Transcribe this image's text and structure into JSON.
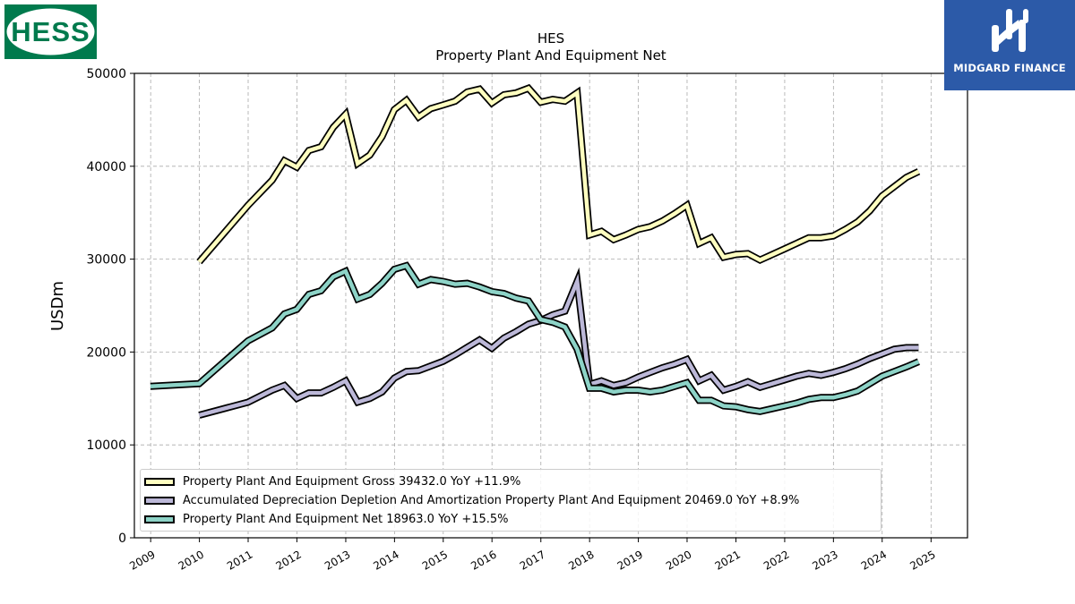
{
  "logos": {
    "left": {
      "text": "HESS",
      "bg_color": "#007a4d"
    },
    "right": {
      "text": "MIDGARD FINANCE",
      "bg_color": "#2c5aa8"
    }
  },
  "chart_data": {
    "type": "line",
    "title": "HES",
    "subtitle": "Property Plant And Equipment Net",
    "xlabel": "",
    "ylabel": "USDm",
    "xlim": [
      "2008-09-01",
      "2025-10-01"
    ],
    "ylim": [
      0,
      50000
    ],
    "x_ticks": [
      "2009",
      "2010",
      "2011",
      "2012",
      "2013",
      "2014",
      "2015",
      "2016",
      "2017",
      "2018",
      "2019",
      "2020",
      "2021",
      "2022",
      "2023",
      "2024",
      "2025"
    ],
    "y_ticks": [
      "0",
      "10000",
      "20000",
      "30000",
      "40000",
      "50000"
    ],
    "grid": true,
    "legend_position": "lower-left",
    "series": [
      {
        "name": "Property Plant And Equipment Gross",
        "legend_label": "Property Plant And Equipment Gross  39432.0 YoY +11.9%",
        "color": "#ffffc0",
        "points": [
          [
            "2009-12-31",
            29700
          ],
          [
            "2010-12-31",
            35800
          ],
          [
            "2011-06-30",
            38500
          ],
          [
            "2011-09-30",
            40600
          ],
          [
            "2011-12-31",
            39900
          ],
          [
            "2012-03-31",
            41700
          ],
          [
            "2012-06-30",
            42100
          ],
          [
            "2012-09-30",
            44200
          ],
          [
            "2012-12-31",
            45600
          ],
          [
            "2013-03-31",
            40300
          ],
          [
            "2013-06-30",
            41200
          ],
          [
            "2013-09-30",
            43200
          ],
          [
            "2013-12-31",
            46100
          ],
          [
            "2014-03-31",
            47100
          ],
          [
            "2014-06-30",
            45300
          ],
          [
            "2014-09-30",
            46200
          ],
          [
            "2014-12-31",
            46600
          ],
          [
            "2015-03-31",
            47000
          ],
          [
            "2015-06-30",
            48000
          ],
          [
            "2015-09-30",
            48300
          ],
          [
            "2015-12-31",
            46800
          ],
          [
            "2016-03-31",
            47700
          ],
          [
            "2016-06-30",
            47900
          ],
          [
            "2016-09-30",
            48400
          ],
          [
            "2016-12-31",
            46900
          ],
          [
            "2017-03-31",
            47200
          ],
          [
            "2017-06-30",
            47000
          ],
          [
            "2017-09-30",
            47900
          ],
          [
            "2017-12-31",
            32600
          ],
          [
            "2018-03-31",
            33000
          ],
          [
            "2018-06-30",
            32100
          ],
          [
            "2018-09-30",
            32600
          ],
          [
            "2018-12-31",
            33200
          ],
          [
            "2019-03-31",
            33500
          ],
          [
            "2019-06-30",
            34100
          ],
          [
            "2019-09-30",
            34900
          ],
          [
            "2019-12-31",
            35800
          ],
          [
            "2020-03-31",
            31700
          ],
          [
            "2020-06-30",
            32300
          ],
          [
            "2020-09-30",
            30200
          ],
          [
            "2020-12-31",
            30500
          ],
          [
            "2021-03-31",
            30600
          ],
          [
            "2021-06-30",
            29900
          ],
          [
            "2021-09-30",
            30500
          ],
          [
            "2021-12-31",
            31100
          ],
          [
            "2022-03-31",
            31700
          ],
          [
            "2022-06-30",
            32300
          ],
          [
            "2022-09-30",
            32300
          ],
          [
            "2022-12-31",
            32500
          ],
          [
            "2023-03-31",
            33200
          ],
          [
            "2023-06-30",
            34000
          ],
          [
            "2023-09-30",
            35200
          ],
          [
            "2023-12-31",
            36800
          ],
          [
            "2024-03-31",
            37800
          ],
          [
            "2024-06-30",
            38800
          ],
          [
            "2024-09-30",
            39432
          ]
        ]
      },
      {
        "name": "Accumulated Depreciation Depletion And Amortization Property Plant And Equipment",
        "legend_label": "Accumulated Depreciation Depletion And Amortization Property Plant And Equipment  20469.0 YoY +8.9%",
        "color": "#bcb8d8",
        "points": [
          [
            "2009-12-31",
            13200
          ],
          [
            "2010-12-31",
            14600
          ],
          [
            "2011-06-30",
            15900
          ],
          [
            "2011-09-30",
            16400
          ],
          [
            "2011-12-31",
            15000
          ],
          [
            "2012-03-31",
            15600
          ],
          [
            "2012-06-30",
            15600
          ],
          [
            "2012-09-30",
            16200
          ],
          [
            "2012-12-31",
            16900
          ],
          [
            "2013-03-31",
            14600
          ],
          [
            "2013-06-30",
            15000
          ],
          [
            "2013-09-30",
            15700
          ],
          [
            "2013-12-31",
            17200
          ],
          [
            "2014-03-31",
            17900
          ],
          [
            "2014-06-30",
            18000
          ],
          [
            "2014-09-30",
            18500
          ],
          [
            "2014-12-31",
            19000
          ],
          [
            "2015-03-31",
            19700
          ],
          [
            "2015-06-30",
            20500
          ],
          [
            "2015-09-30",
            21300
          ],
          [
            "2015-12-31",
            20400
          ],
          [
            "2016-03-31",
            21500
          ],
          [
            "2016-06-30",
            22200
          ],
          [
            "2016-09-30",
            23000
          ],
          [
            "2016-12-31",
            23400
          ],
          [
            "2017-03-31",
            24000
          ],
          [
            "2017-06-30",
            24400
          ],
          [
            "2017-09-30",
            27600
          ],
          [
            "2017-12-31",
            16500
          ],
          [
            "2018-03-31",
            16900
          ],
          [
            "2018-06-30",
            16400
          ],
          [
            "2018-09-30",
            16700
          ],
          [
            "2018-12-31",
            17300
          ],
          [
            "2019-03-31",
            17800
          ],
          [
            "2019-06-30",
            18300
          ],
          [
            "2019-09-30",
            18700
          ],
          [
            "2019-12-31",
            19200
          ],
          [
            "2020-03-31",
            16900
          ],
          [
            "2020-06-30",
            17500
          ],
          [
            "2020-09-30",
            15900
          ],
          [
            "2020-12-31",
            16300
          ],
          [
            "2021-03-31",
            16800
          ],
          [
            "2021-06-30",
            16200
          ],
          [
            "2021-09-30",
            16600
          ],
          [
            "2021-12-31",
            17000
          ],
          [
            "2022-03-31",
            17400
          ],
          [
            "2022-06-30",
            17700
          ],
          [
            "2022-09-30",
            17500
          ],
          [
            "2022-12-31",
            17800
          ],
          [
            "2023-03-31",
            18200
          ],
          [
            "2023-06-30",
            18700
          ],
          [
            "2023-09-30",
            19300
          ],
          [
            "2023-12-31",
            19800
          ],
          [
            "2024-03-31",
            20300
          ],
          [
            "2024-06-30",
            20469
          ],
          [
            "2024-09-30",
            20469
          ]
        ]
      },
      {
        "name": "Property Plant And Equipment Net",
        "legend_label": "Property Plant And Equipment Net  18963.0 YoY +15.5%",
        "color": "#8dd3c7",
        "points": [
          [
            "2008-12-31",
            16300
          ],
          [
            "2009-12-31",
            16600
          ],
          [
            "2010-12-31",
            21200
          ],
          [
            "2011-06-30",
            22600
          ],
          [
            "2011-09-30",
            24100
          ],
          [
            "2011-12-31",
            24600
          ],
          [
            "2012-03-31",
            26200
          ],
          [
            "2012-06-30",
            26600
          ],
          [
            "2012-09-30",
            28100
          ],
          [
            "2012-12-31",
            28700
          ],
          [
            "2013-03-31",
            25700
          ],
          [
            "2013-06-30",
            26200
          ],
          [
            "2013-09-30",
            27400
          ],
          [
            "2013-12-31",
            28900
          ],
          [
            "2014-03-31",
            29300
          ],
          [
            "2014-06-30",
            27300
          ],
          [
            "2014-09-30",
            27800
          ],
          [
            "2014-12-31",
            27600
          ],
          [
            "2015-03-31",
            27300
          ],
          [
            "2015-06-30",
            27400
          ],
          [
            "2015-09-30",
            27000
          ],
          [
            "2015-12-31",
            26500
          ],
          [
            "2016-03-31",
            26300
          ],
          [
            "2016-06-30",
            25800
          ],
          [
            "2016-09-30",
            25500
          ],
          [
            "2016-12-31",
            23500
          ],
          [
            "2017-03-31",
            23200
          ],
          [
            "2017-06-30",
            22700
          ],
          [
            "2017-09-30",
            20300
          ],
          [
            "2017-12-31",
            16100
          ],
          [
            "2018-03-31",
            16100
          ],
          [
            "2018-06-30",
            15700
          ],
          [
            "2018-09-30",
            15900
          ],
          [
            "2018-12-31",
            15900
          ],
          [
            "2019-03-31",
            15700
          ],
          [
            "2019-06-30",
            15900
          ],
          [
            "2019-09-30",
            16300
          ],
          [
            "2019-12-31",
            16700
          ],
          [
            "2020-03-31",
            14800
          ],
          [
            "2020-06-30",
            14800
          ],
          [
            "2020-09-30",
            14200
          ],
          [
            "2020-12-31",
            14100
          ],
          [
            "2021-03-31",
            13800
          ],
          [
            "2021-06-30",
            13600
          ],
          [
            "2021-09-30",
            13900
          ],
          [
            "2021-12-31",
            14200
          ],
          [
            "2022-03-31",
            14500
          ],
          [
            "2022-06-30",
            14900
          ],
          [
            "2022-09-30",
            15100
          ],
          [
            "2022-12-31",
            15100
          ],
          [
            "2023-03-31",
            15400
          ],
          [
            "2023-06-30",
            15800
          ],
          [
            "2023-09-30",
            16600
          ],
          [
            "2023-12-31",
            17400
          ],
          [
            "2024-03-31",
            17900
          ],
          [
            "2024-06-30",
            18400
          ],
          [
            "2024-09-30",
            18963
          ]
        ]
      }
    ]
  }
}
